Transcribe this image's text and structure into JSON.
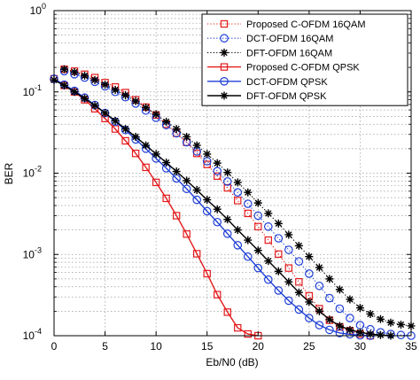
{
  "chart_data": {
    "type": "line",
    "xlabel": "Eb/N0 (dB)",
    "ylabel": "BER",
    "xlim": [
      0,
      35
    ],
    "ylim": [
      0.0001,
      1
    ],
    "yscale": "log",
    "grid": true,
    "legend_position": "top-right",
    "x_ticks": [
      "0",
      "5",
      "10",
      "15",
      "20",
      "25",
      "30",
      "35"
    ],
    "y_ticks": [
      {
        "base": "10",
        "exp": "0"
      },
      {
        "base": "10",
        "exp": "-1"
      },
      {
        "base": "10",
        "exp": "-2"
      },
      {
        "base": "10",
        "exp": "-3"
      },
      {
        "base": "10",
        "exp": "-4"
      }
    ],
    "series": [
      {
        "name": "Proposed C-OFDM 16QAM",
        "color": "#e31a1c",
        "marker": "square",
        "line": "dotted",
        "x": [
          1,
          2,
          3,
          4,
          5,
          6,
          7,
          8,
          9,
          10,
          11,
          12,
          13,
          14,
          15,
          16,
          17,
          18,
          19,
          20,
          21,
          22,
          23,
          24,
          25,
          26,
          27,
          28,
          29,
          30,
          31
        ],
        "y": [
          0.19,
          0.18,
          0.165,
          0.15,
          0.13,
          0.115,
          0.098,
          0.08,
          0.065,
          0.052,
          0.04,
          0.031,
          0.024,
          0.0175,
          0.0128,
          0.0092,
          0.0066,
          0.0046,
          0.0032,
          0.0022,
          0.0015,
          0.00101,
          0.00068,
          0.00046,
          0.00031,
          0.000215,
          0.000155,
          0.000128,
          0.000115,
          0.000105,
          0.0001
        ]
      },
      {
        "name": "DCT-OFDM 16QAM",
        "color": "#1f3fd6",
        "marker": "circle",
        "line": "dotted",
        "x": [
          1,
          2,
          3,
          4,
          5,
          6,
          7,
          8,
          9,
          10,
          11,
          12,
          13,
          14,
          15,
          16,
          17,
          18,
          19,
          20,
          21,
          22,
          23,
          24,
          25,
          26,
          27,
          28,
          29,
          30,
          31,
          32,
          33,
          34,
          35
        ],
        "y": [
          0.18,
          0.165,
          0.15,
          0.133,
          0.117,
          0.1,
          0.086,
          0.072,
          0.059,
          0.048,
          0.039,
          0.031,
          0.024,
          0.0185,
          0.014,
          0.0106,
          0.0079,
          0.0058,
          0.0042,
          0.003,
          0.0022,
          0.00158,
          0.00114,
          0.00082,
          0.00058,
          0.00041,
          0.00029,
          0.000215,
          0.000165,
          0.000135,
          0.00012,
          0.00011,
          0.000105,
          0.000102,
          0.0001
        ]
      },
      {
        "name": "DFT-OFDM 16QAM",
        "color": "#000000",
        "marker": "star",
        "line": "dotted",
        "x": [
          1,
          2,
          3,
          4,
          5,
          6,
          7,
          8,
          9,
          10,
          11,
          12,
          13,
          14,
          15,
          16,
          17,
          18,
          19,
          20,
          21,
          22,
          23,
          24,
          25,
          26,
          27,
          28,
          29,
          30,
          31,
          32,
          33,
          34,
          35
        ],
        "y": [
          0.19,
          0.175,
          0.158,
          0.14,
          0.123,
          0.106,
          0.091,
          0.077,
          0.064,
          0.053,
          0.043,
          0.035,
          0.028,
          0.022,
          0.0172,
          0.0133,
          0.0102,
          0.0077,
          0.0058,
          0.0043,
          0.0032,
          0.0024,
          0.00175,
          0.00128,
          0.00094,
          0.00069,
          0.0005,
          0.00037,
          0.00028,
          0.00022,
          0.000185,
          0.00016,
          0.000145,
          0.000137,
          0.000132
        ]
      },
      {
        "name": "Proposed C-OFDM QPSK",
        "color": "#e31a1c",
        "marker": "square",
        "line": "solid",
        "x": [
          0,
          1,
          2,
          3,
          4,
          5,
          6,
          7,
          8,
          9,
          10,
          11,
          12,
          13,
          14,
          15,
          16,
          17,
          18,
          19,
          20
        ],
        "y": [
          0.145,
          0.12,
          0.1,
          0.08,
          0.062,
          0.047,
          0.035,
          0.025,
          0.0175,
          0.0118,
          0.0077,
          0.0049,
          0.003,
          0.00178,
          0.00102,
          0.00058,
          0.00032,
          0.000195,
          0.000125,
          0.000105,
          0.0001
        ]
      },
      {
        "name": "DCT-OFDM QPSK",
        "color": "#1f3fd6",
        "marker": "circle",
        "line": "solid",
        "x": [
          0,
          1,
          2,
          3,
          4,
          5,
          6,
          7,
          8,
          9,
          10,
          11,
          12,
          13,
          14,
          15,
          16,
          17,
          18,
          19,
          20,
          21,
          22,
          23,
          24,
          25,
          26,
          27,
          28,
          29,
          30,
          31
        ],
        "y": [
          0.145,
          0.123,
          0.103,
          0.085,
          0.069,
          0.055,
          0.043,
          0.034,
          0.026,
          0.02,
          0.0152,
          0.0115,
          0.0086,
          0.0064,
          0.0047,
          0.0034,
          0.0025,
          0.0018,
          0.0013,
          0.00094,
          0.00068,
          0.00049,
          0.00036,
          0.00027,
          0.00021,
          0.000165,
          0.000135,
          0.000118,
          0.000108,
          0.000104,
          0.000101,
          0.0001
        ]
      },
      {
        "name": "DFT-OFDM QPSK",
        "color": "#000000",
        "marker": "star",
        "line": "solid",
        "x": [
          0,
          1,
          2,
          3,
          4,
          5,
          6,
          7,
          8,
          9,
          10,
          11,
          12,
          13,
          14,
          15,
          16,
          17,
          18,
          19,
          20,
          21,
          22,
          23,
          24,
          25,
          26,
          27,
          28,
          29,
          30,
          31,
          32,
          33
        ],
        "y": [
          0.14,
          0.12,
          0.1,
          0.083,
          0.068,
          0.055,
          0.044,
          0.035,
          0.028,
          0.022,
          0.0172,
          0.0135,
          0.0105,
          0.0081,
          0.0062,
          0.0047,
          0.0036,
          0.0027,
          0.002,
          0.0015,
          0.00112,
          0.00083,
          0.00062,
          0.00046,
          0.00034,
          0.00026,
          0.0002,
          0.000158,
          0.000132,
          0.000118,
          0.00011,
          0.000105,
          0.000102,
          0.0001
        ]
      }
    ]
  }
}
